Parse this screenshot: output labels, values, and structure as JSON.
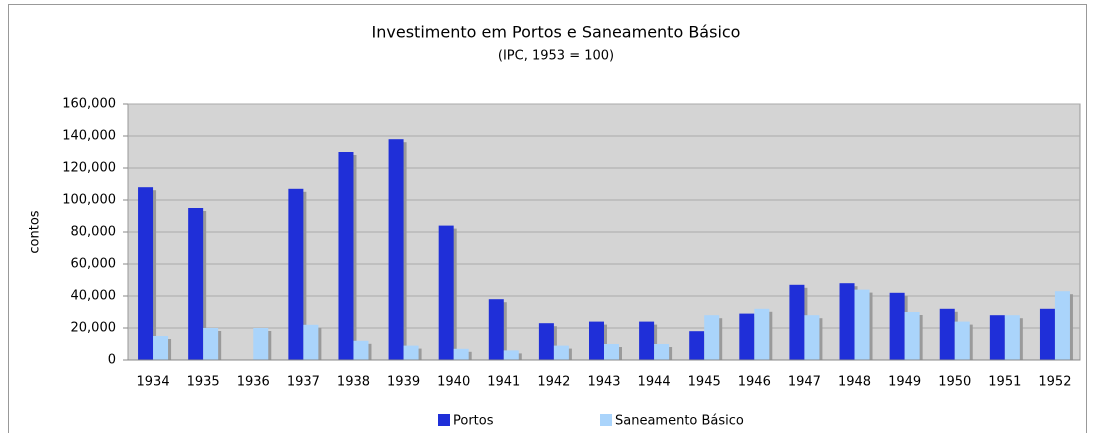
{
  "chart_data": {
    "type": "bar",
    "title": "Investimento em Portos e Saneamento Básico",
    "subtitle": "(IPC, 1953 = 100)",
    "y_label": "contos",
    "categories": [
      "1934",
      "1935",
      "1936",
      "1937",
      "1938",
      "1939",
      "1940",
      "1941",
      "1942",
      "1943",
      "1944",
      "1945",
      "1946",
      "1947",
      "1948",
      "1949",
      "1950",
      "1951",
      "1952"
    ],
    "series": [
      {
        "name": "Portos",
        "color": "#1f2fd8",
        "values": [
          108000,
          95000,
          0,
          107000,
          130000,
          138000,
          84000,
          38000,
          23000,
          24000,
          24000,
          18000,
          29000,
          47000,
          48000,
          42000,
          32000,
          28000,
          32000
        ]
      },
      {
        "name": "Saneamento Básico",
        "color": "#aad4fb",
        "values": [
          15000,
          20000,
          20000,
          22000,
          12000,
          9000,
          7000,
          6000,
          9000,
          10000,
          10000,
          28000,
          32000,
          28000,
          44000,
          30000,
          24000,
          28000,
          43000
        ]
      }
    ],
    "ylim": [
      0,
      160000
    ],
    "yticks": [
      0,
      {
        "value": 20000,
        "label": "20,000"
      },
      {
        "value": 40000,
        "label": "40,000"
      },
      {
        "value": 60000,
        "label": "60,000"
      },
      {
        "value": 80000,
        "label": "80,000"
      },
      {
        "value": 100000,
        "label": "100,000"
      },
      {
        "value": 120000,
        "label": "120,000"
      },
      {
        "value": 140000,
        "label": "140,000"
      },
      {
        "value": 160000,
        "label": "160,000"
      }
    ],
    "grid": true,
    "legend": "bottom"
  }
}
